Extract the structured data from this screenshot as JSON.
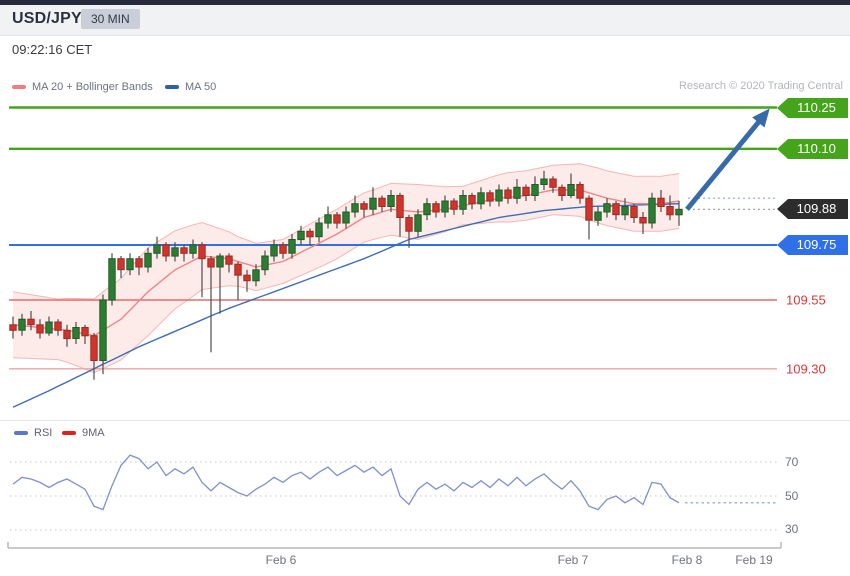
{
  "header": {
    "symbol": "USD/JPY",
    "timeframe": "30 MIN"
  },
  "timestamp": "09:22:16 CET",
  "credit": "Research © 2020 Trading Central",
  "legend_main": [
    {
      "label": "MA 20 + Bollinger Bands",
      "color": "#f47c7c"
    },
    {
      "label": "MA 50",
      "color": "#2d5fa6"
    }
  ],
  "legend_rsi": [
    {
      "label": "RSI",
      "color": "#5b79c9"
    },
    {
      "label": "9MA",
      "color": "#e01f1f"
    }
  ],
  "xaxis": {
    "labels": [
      "Feb 6",
      "Feb 7",
      "Feb 8",
      "Feb 19"
    ]
  },
  "rsi_axis": {
    "labels": [
      "70",
      "50",
      "30"
    ]
  },
  "colors": {
    "candle_up": "#2c7d33",
    "candle_up_stroke": "#215c26",
    "candle_down": "#d0342c",
    "candle_down_stroke": "#9e2a24",
    "wick": "#4d4d4d",
    "band_fill": "rgba(242,130,125,0.16)",
    "band_edge": "rgba(242,130,125,0.55)",
    "ma20": "#ef8585",
    "ma50": "#3d6db5",
    "arrow": "#376ba8",
    "rsi_line": "#7e90d0",
    "rsi_grid": "#c7c7c7",
    "rsi_projection": "#9fb1dd",
    "axis": "#b8b8b8"
  },
  "chart_data": {
    "type": "candlestick",
    "symbol": "USD/JPY",
    "interval": "30 MIN",
    "price_range_visible": [
      109.25,
      110.3
    ],
    "levels": [
      {
        "label": "110.25",
        "value": 110.25,
        "kind": "resistance",
        "line": true,
        "line_color": "#44a41a",
        "tag_bg": "#44a41a"
      },
      {
        "label": "110.10",
        "value": 110.1,
        "kind": "resistance",
        "line": true,
        "line_color": "#44a41a",
        "tag_bg": "#44a41a"
      },
      {
        "label": "109.88",
        "value": 109.88,
        "kind": "last",
        "line": false,
        "line_color": null,
        "tag_bg": "#2d2d2d"
      },
      {
        "label": "109.75",
        "value": 109.75,
        "kind": "pivot",
        "line": true,
        "line_color": "#2f6fe8",
        "tag_bg": "#2f6fe8"
      },
      {
        "label": "109.55",
        "value": 109.55,
        "kind": "support",
        "line": true,
        "line_color": "#e26c6c",
        "text_color": "#d43b3b"
      },
      {
        "label": "109.30",
        "value": 109.3,
        "kind": "support",
        "line": true,
        "line_color": "#efa0a0",
        "text_color": "#d43b3b"
      }
    ],
    "candles": [
      [
        109.46,
        109.49,
        109.41,
        109.44
      ],
      [
        109.44,
        109.5,
        109.42,
        109.48
      ],
      [
        109.48,
        109.51,
        109.44,
        109.46
      ],
      [
        109.46,
        109.48,
        109.41,
        109.43
      ],
      [
        109.43,
        109.49,
        109.42,
        109.47
      ],
      [
        109.47,
        109.48,
        109.42,
        109.44
      ],
      [
        109.44,
        109.46,
        109.38,
        109.41
      ],
      [
        109.41,
        109.47,
        109.39,
        109.45
      ],
      [
        109.45,
        109.46,
        109.39,
        109.42
      ],
      [
        109.42,
        109.43,
        109.26,
        109.33
      ],
      [
        109.33,
        109.57,
        109.28,
        109.55
      ],
      [
        109.55,
        109.72,
        109.53,
        109.7
      ],
      [
        109.7,
        109.71,
        109.63,
        109.66
      ],
      [
        109.66,
        109.72,
        109.64,
        109.7
      ],
      [
        109.7,
        109.71,
        109.64,
        109.67
      ],
      [
        109.67,
        109.74,
        109.65,
        109.72
      ],
      [
        109.72,
        109.78,
        109.7,
        109.75
      ],
      [
        109.75,
        109.76,
        109.69,
        109.71
      ],
      [
        109.71,
        109.76,
        109.69,
        109.74
      ],
      [
        109.74,
        109.75,
        109.69,
        109.72
      ],
      [
        109.72,
        109.77,
        109.7,
        109.75
      ],
      [
        109.75,
        109.76,
        109.56,
        109.7
      ],
      [
        109.7,
        109.71,
        109.36,
        109.67
      ],
      [
        109.67,
        109.72,
        109.5,
        109.71
      ],
      [
        109.71,
        109.72,
        109.65,
        109.68
      ],
      [
        109.68,
        109.69,
        109.55,
        109.64
      ],
      [
        109.64,
        109.66,
        109.58,
        109.62
      ],
      [
        109.62,
        109.68,
        109.6,
        109.66
      ],
      [
        109.66,
        109.73,
        109.64,
        109.71
      ],
      [
        109.71,
        109.77,
        109.69,
        109.75
      ],
      [
        109.75,
        109.76,
        109.7,
        109.72
      ],
      [
        109.72,
        109.79,
        109.7,
        109.77
      ],
      [
        109.77,
        109.82,
        109.75,
        109.8
      ],
      [
        109.8,
        109.81,
        109.75,
        109.78
      ],
      [
        109.78,
        109.85,
        109.76,
        109.83
      ],
      [
        109.83,
        109.89,
        109.81,
        109.86
      ],
      [
        109.86,
        109.87,
        109.81,
        109.83
      ],
      [
        109.83,
        109.89,
        109.81,
        109.87
      ],
      [
        109.87,
        109.93,
        109.85,
        109.9
      ],
      [
        109.9,
        109.91,
        109.85,
        109.88
      ],
      [
        109.88,
        109.96,
        109.86,
        109.92
      ],
      [
        109.92,
        109.93,
        109.87,
        109.89
      ],
      [
        109.89,
        109.95,
        109.87,
        109.93
      ],
      [
        109.93,
        109.94,
        109.78,
        109.85
      ],
      [
        109.85,
        109.86,
        109.74,
        109.8
      ],
      [
        109.8,
        109.88,
        109.78,
        109.86
      ],
      [
        109.86,
        109.92,
        109.84,
        109.9
      ],
      [
        109.9,
        109.91,
        109.85,
        109.87
      ],
      [
        109.87,
        109.93,
        109.85,
        109.91
      ],
      [
        109.91,
        109.92,
        109.86,
        109.88
      ],
      [
        109.88,
        109.95,
        109.86,
        109.93
      ],
      [
        109.93,
        109.94,
        109.88,
        109.9
      ],
      [
        109.9,
        109.96,
        109.88,
        109.94
      ],
      [
        109.94,
        109.95,
        109.89,
        109.91
      ],
      [
        109.91,
        109.97,
        109.89,
        109.95
      ],
      [
        109.95,
        109.96,
        109.9,
        109.92
      ],
      [
        109.92,
        109.99,
        109.9,
        109.96
      ],
      [
        109.96,
        109.97,
        109.91,
        109.93
      ],
      [
        109.93,
        110.0,
        109.91,
        109.97
      ],
      [
        109.97,
        110.02,
        109.95,
        109.99
      ],
      [
        109.99,
        110.0,
        109.94,
        109.96
      ],
      [
        109.96,
        109.97,
        109.91,
        109.93
      ],
      [
        109.93,
        110.01,
        109.92,
        109.97
      ],
      [
        109.97,
        109.98,
        109.9,
        109.92
      ],
      [
        109.92,
        109.93,
        109.77,
        109.84
      ],
      [
        109.84,
        109.89,
        109.82,
        109.87
      ],
      [
        109.87,
        109.92,
        109.85,
        109.9
      ],
      [
        109.9,
        109.91,
        109.84,
        109.86
      ],
      [
        109.86,
        109.92,
        109.84,
        109.89
      ],
      [
        109.89,
        109.9,
        109.83,
        109.85
      ],
      [
        109.85,
        109.87,
        109.79,
        109.83
      ],
      [
        109.83,
        109.94,
        109.81,
        109.92
      ],
      [
        109.92,
        109.95,
        109.87,
        109.89
      ],
      [
        109.89,
        109.93,
        109.84,
        109.86
      ],
      [
        109.86,
        109.91,
        109.82,
        109.88
      ]
    ],
    "ma50_points": {
      "i": [
        0,
        4,
        9,
        14,
        19,
        24,
        29,
        34,
        39,
        44,
        49,
        54,
        59,
        64,
        69,
        74
      ],
      "v": [
        109.16,
        109.22,
        109.3,
        109.38,
        109.45,
        109.52,
        109.58,
        109.64,
        109.7,
        109.77,
        109.81,
        109.85,
        109.875,
        109.89,
        109.895,
        109.9
      ]
    },
    "ma20_points": {
      "i": [
        0,
        3,
        6,
        9,
        12,
        15,
        18,
        21,
        24,
        27,
        30,
        33,
        36,
        39,
        42,
        45,
        48,
        51,
        54,
        57,
        60,
        63,
        66,
        69,
        72,
        74
      ],
      "v": [
        109.46,
        109.45,
        109.44,
        109.42,
        109.48,
        109.58,
        109.66,
        109.71,
        109.7,
        109.67,
        109.69,
        109.74,
        109.79,
        109.85,
        109.88,
        109.87,
        109.88,
        109.9,
        109.92,
        109.93,
        109.95,
        109.95,
        109.92,
        109.9,
        109.9,
        109.91
      ]
    },
    "bb_halfwidth_points": {
      "i": [
        0,
        5,
        10,
        15,
        20,
        25,
        30,
        35,
        40,
        45,
        50,
        55,
        60,
        65,
        70,
        74
      ],
      "v": [
        0.12,
        0.11,
        0.14,
        0.16,
        0.13,
        0.09,
        0.08,
        0.09,
        0.09,
        0.1,
        0.07,
        0.09,
        0.09,
        0.1,
        0.1,
        0.1
      ]
    },
    "projection": {
      "dotted_levels": [
        {
          "value": 109.92,
          "color": "#8fa7cf"
        },
        {
          "value": 109.88,
          "color": "#9c9c9c"
        }
      ],
      "arrow": {
        "from_price": 109.88,
        "to_price": 110.25
      }
    },
    "rsi": {
      "gridlines": [
        70,
        50,
        30
      ],
      "values": [
        57,
        61,
        60,
        58,
        55,
        58,
        60,
        57,
        54,
        44,
        42,
        56,
        68,
        74,
        72,
        66,
        70,
        62,
        66,
        63,
        67,
        58,
        53,
        58,
        55,
        52,
        50,
        54,
        57,
        61,
        58,
        62,
        64,
        60,
        64,
        67,
        62,
        65,
        68,
        64,
        67,
        62,
        66,
        50,
        45,
        54,
        58,
        54,
        57,
        53,
        58,
        55,
        59,
        55,
        60,
        56,
        61,
        56,
        60,
        63,
        58,
        54,
        59,
        53,
        44,
        42,
        48,
        50,
        46,
        49,
        45,
        58,
        57,
        49,
        46
      ],
      "projection_value": 46
    }
  }
}
